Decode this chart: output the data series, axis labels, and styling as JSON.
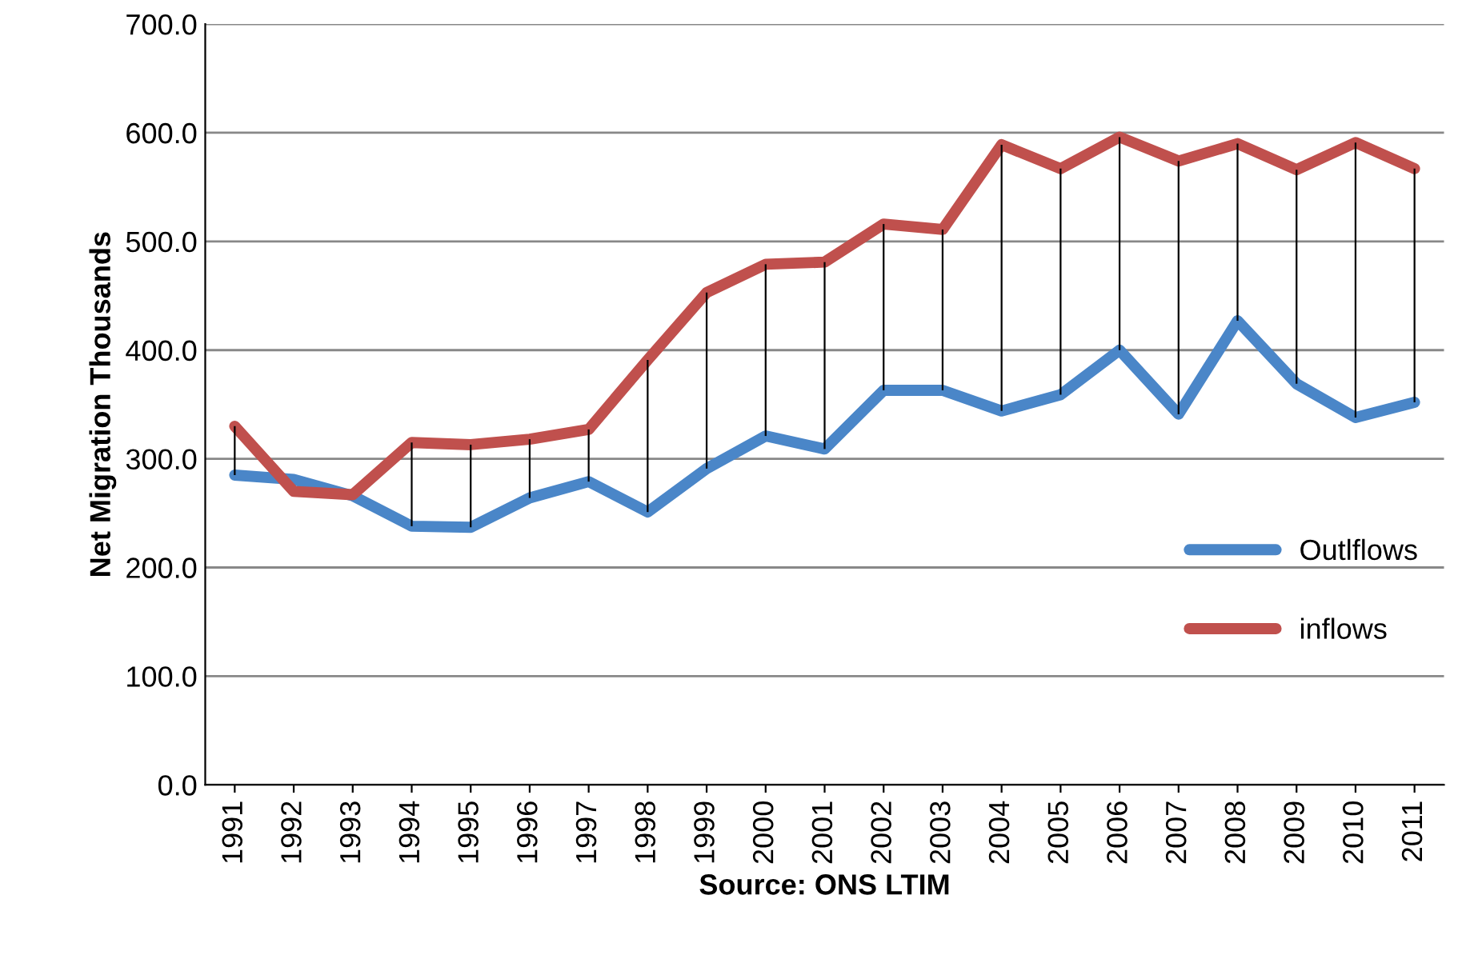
{
  "chart_data": {
    "type": "line",
    "ylabel": "Net Migration Thousands",
    "xlabel": "Source: ONS LTIM",
    "categories": [
      "1991",
      "1992",
      "1993",
      "1994",
      "1995",
      "1996",
      "1997",
      "1998",
      "1999",
      "2000",
      "2001",
      "2002",
      "2003",
      "2004",
      "2005",
      "2006",
      "2007",
      "2008",
      "2009",
      "2010",
      "2011"
    ],
    "series": [
      {
        "name": "Outlflows",
        "color": "#4a86c8",
        "values": [
          285,
          281,
          266,
          238,
          237,
          264,
          279,
          251,
          291,
          321,
          309,
          363,
          363,
          344,
          359,
          400,
          341,
          427,
          369,
          338,
          352
        ]
      },
      {
        "name": "inflows",
        "color": "#c0504d",
        "values": [
          330,
          270,
          267,
          315,
          313,
          318,
          327,
          391,
          453,
          479,
          481,
          516,
          511,
          589,
          567,
          596,
          574,
          590,
          566,
          591,
          567
        ],
        "errors": [
          [
            285,
            330
          ],
          null,
          null,
          [
            238,
            315
          ],
          [
            237,
            313
          ],
          [
            264,
            318
          ],
          [
            279,
            327
          ],
          [
            251,
            391
          ],
          [
            291,
            453
          ],
          [
            321,
            479
          ],
          [
            309,
            481
          ],
          [
            363,
            516
          ],
          [
            363,
            511
          ],
          [
            344,
            589
          ],
          [
            359,
            567
          ],
          [
            400,
            596
          ],
          [
            341,
            574
          ],
          [
            427,
            590
          ],
          [
            369,
            566
          ],
          [
            338,
            591
          ],
          [
            352,
            567
          ]
        ]
      }
    ],
    "ylim": [
      0,
      700
    ],
    "yticks": [
      {
        "value": 0,
        "label": "0.0"
      },
      {
        "value": 100,
        "label": "100.0"
      },
      {
        "value": 200,
        "label": "200.0"
      },
      {
        "value": 300,
        "label": "300.0"
      },
      {
        "value": 400,
        "label": "400.0"
      },
      {
        "value": 500,
        "label": "500.0"
      },
      {
        "value": 600,
        "label": "600.0"
      },
      {
        "value": 700,
        "label": "700.0"
      }
    ],
    "grid": "y",
    "legend": "lower right",
    "marker": "none",
    "line_style": "solid"
  }
}
